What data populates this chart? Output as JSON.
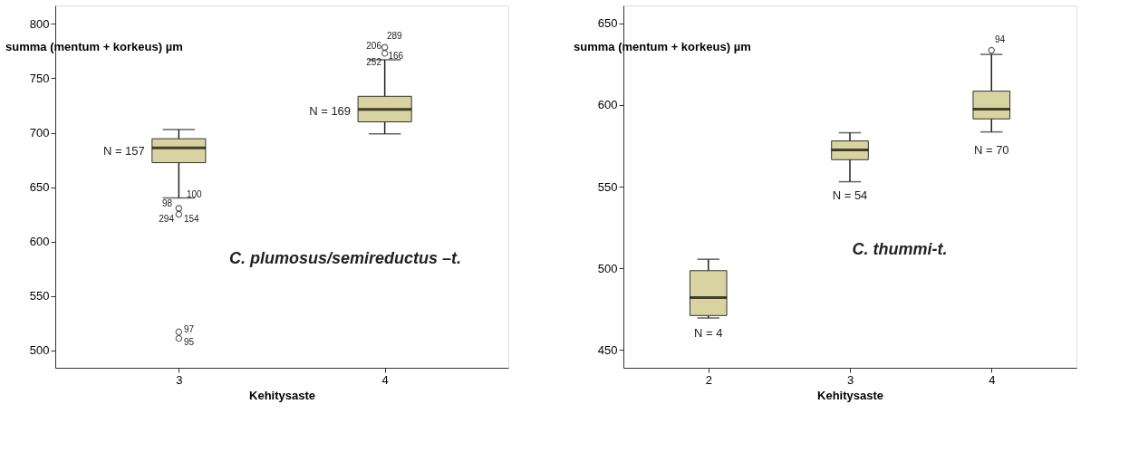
{
  "chart_data": [
    {
      "type": "box",
      "xlabel": "Kehitysaste",
      "ylabel": "summa (mentum + korkeus) µm",
      "categories": [
        "3",
        "4"
      ],
      "ylim": [
        484,
        817
      ],
      "yticks": [
        500,
        550,
        600,
        650,
        700,
        750,
        800
      ],
      "grid": false,
      "series": [
        {
          "color": "#d8d3a0",
          "boxes": [
            {
              "low": 640,
              "q1": 672.5,
              "median": 686,
              "q3": 694.5,
              "high": 703,
              "outliers": [
                630.5,
                625,
                517,
                511
              ]
            },
            {
              "low": 699,
              "q1": 710,
              "median": 721.5,
              "q3": 733.5,
              "high": 767,
              "outliers": [
                778.5,
                773
              ]
            }
          ]
        }
      ],
      "annotations": [
        {
          "text": "N = 157",
          "x": "3",
          "y": 683
        },
        {
          "text": "N = 169",
          "x": "4",
          "y": 720
        },
        "98",
        "100",
        "294",
        "154",
        "97",
        "95",
        "206",
        "289",
        "252",
        "166",
        "C. plumosus/semireductus –t."
      ]
    },
    {
      "type": "box",
      "xlabel": "Kehitysaste",
      "ylabel": "summa (mentum + korkeus) µm",
      "categories": [
        "2",
        "3",
        "4"
      ],
      "ylim": [
        439,
        661
      ],
      "yticks": [
        450,
        500,
        550,
        600,
        650
      ],
      "grid": false,
      "series": [
        {
          "color": "#d8d3a0",
          "boxes": [
            {
              "low": 469.5,
              "q1": 471,
              "median": 482,
              "q3": 498.5,
              "high": 505.5
            },
            {
              "low": 553,
              "q1": 566.5,
              "median": 572.5,
              "q3": 578,
              "high": 583
            },
            {
              "low": 583.5,
              "q1": 591.5,
              "median": 597.5,
              "q3": 608.5,
              "high": 631,
              "outliers": [
                633.5
              ]
            }
          ]
        }
      ],
      "annotations": [
        "N = 4",
        "N = 54",
        "N = 70",
        "94",
        "C. thummi-t."
      ]
    }
  ]
}
